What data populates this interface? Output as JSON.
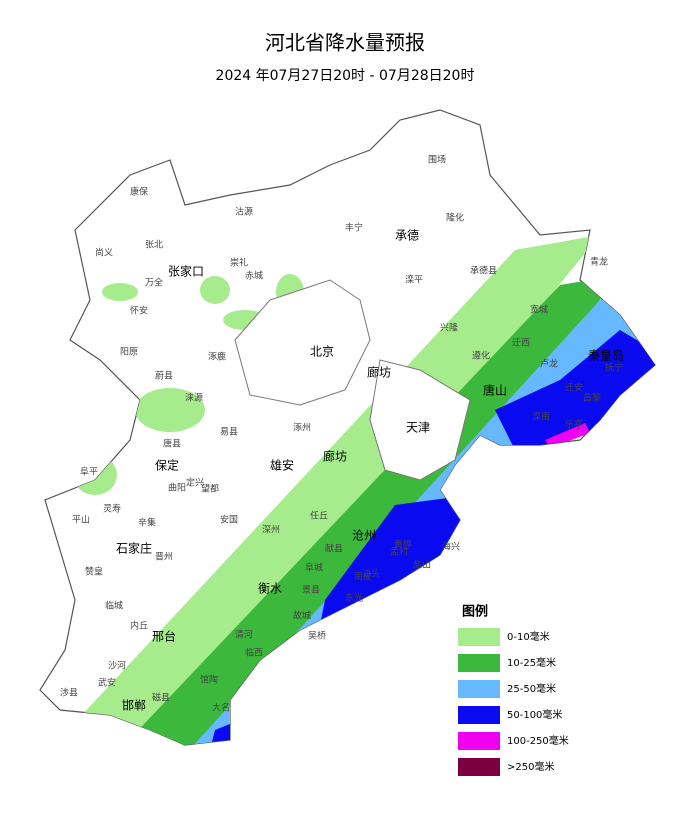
{
  "header": {
    "title": "河北省降水量预报",
    "subtitle": "2024 年07月27日20时 - 07月28日20时"
  },
  "legend": {
    "title": "图例",
    "items": [
      {
        "label": "0-10毫米",
        "color": "#a6ec8c"
      },
      {
        "label": "10-25毫米",
        "color": "#3cb93c"
      },
      {
        "label": "25-50毫米",
        "color": "#66b8ff"
      },
      {
        "label": "50-100毫米",
        "color": "#0a0af0"
      },
      {
        "label": "100-250毫米",
        "color": "#f000f0"
      },
      {
        "label": ">250毫米",
        "color": "#7a0040"
      }
    ]
  },
  "cities": [
    "张家口",
    "承德",
    "北京",
    "廊坊",
    "天津",
    "唐山",
    "秦皇岛",
    "保定",
    "雄安",
    "廊坊",
    "石家庄",
    "沧州",
    "衡水",
    "邢台",
    "邯郸"
  ],
  "counties": [
    "康保",
    "沽源",
    "围场",
    "丰宁",
    "隆化",
    "尚义",
    "张北",
    "崇礼",
    "赤城",
    "滦平",
    "承德县",
    "宽城",
    "青龙",
    "万全",
    "怀安",
    "阳原",
    "蔚县",
    "涿鹿",
    "兴隆",
    "遵化",
    "迁西",
    "迁安",
    "卢龙",
    "抚宁",
    "昌黎",
    "乐亭",
    "滦南",
    "涞源",
    "易县",
    "涿州",
    "定兴",
    "安国",
    "深州",
    "辛集",
    "晋州",
    "赞皇",
    "临城",
    "内丘",
    "沙河",
    "武安",
    "涉县",
    "磁县",
    "大名",
    "馆陶",
    "临西",
    "清河",
    "故城",
    "景县",
    "阜城",
    "泊头",
    "献县",
    "任丘",
    "黄骅",
    "海兴",
    "盐山",
    "孟村",
    "南皮",
    "东光",
    "吴桥",
    "平山",
    "灵寿",
    "阜平",
    "唐县",
    "曲阳",
    "望都"
  ]
}
